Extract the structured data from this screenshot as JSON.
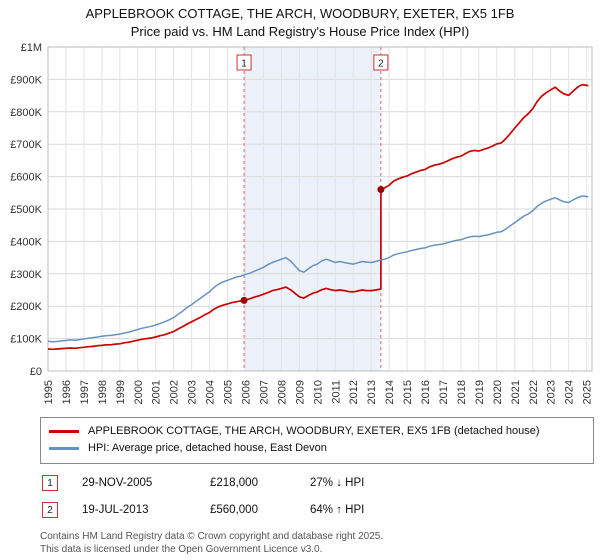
{
  "title": {
    "line1": "APPLEBROOK COTTAGE, THE ARCH, WOODBURY, EXETER, EX5 1FB",
    "line2": "Price paid vs. HM Land Registry's House Price Index (HPI)"
  },
  "chart_data": {
    "type": "line",
    "x_range": [
      1995,
      2025.3
    ],
    "y_range": [
      0,
      1000
    ],
    "y_unit": "GBP thousands",
    "y_ticks": [
      {
        "value": 0,
        "label": "£0"
      },
      {
        "value": 100,
        "label": "£100K"
      },
      {
        "value": 200,
        "label": "£200K"
      },
      {
        "value": 300,
        "label": "£300K"
      },
      {
        "value": 400,
        "label": "£400K"
      },
      {
        "value": 500,
        "label": "£500K"
      },
      {
        "value": 600,
        "label": "£600K"
      },
      {
        "value": 700,
        "label": "£700K"
      },
      {
        "value": 800,
        "label": "£800K"
      },
      {
        "value": 900,
        "label": "£900K"
      },
      {
        "value": 1000,
        "label": "£1M"
      }
    ],
    "x_ticks": [
      1995,
      1996,
      1997,
      1998,
      1999,
      2000,
      2001,
      2002,
      2003,
      2004,
      2005,
      2006,
      2007,
      2008,
      2009,
      2010,
      2011,
      2012,
      2013,
      2014,
      2015,
      2016,
      2017,
      2018,
      2019,
      2020,
      2021,
      2022,
      2023,
      2024,
      2025
    ],
    "shaded_region": {
      "from": 2005.92,
      "to": 2013.54,
      "color": "#edf2fa"
    },
    "markers": [
      {
        "n": "1",
        "x": 2005.92,
        "y": 218
      },
      {
        "n": "2",
        "x": 2013.54,
        "y": 560
      }
    ],
    "series": [
      {
        "name": "APPLEBROOK COTTAGE, THE ARCH, WOODBURY, EXETER, EX5 1FB (detached house)",
        "color": "#cc0000",
        "width": 1.7,
        "points": [
          [
            1995.0,
            68
          ],
          [
            1995.25,
            67
          ],
          [
            1995.5,
            68
          ],
          [
            1995.75,
            69
          ],
          [
            1996.0,
            70
          ],
          [
            1996.25,
            71
          ],
          [
            1996.5,
            70
          ],
          [
            1996.75,
            72
          ],
          [
            1997.0,
            73
          ],
          [
            1997.25,
            75
          ],
          [
            1997.5,
            76
          ],
          [
            1997.75,
            78
          ],
          [
            1998.0,
            79
          ],
          [
            1998.25,
            81
          ],
          [
            1998.5,
            81
          ],
          [
            1998.75,
            83
          ],
          [
            1999.0,
            84
          ],
          [
            1999.25,
            87
          ],
          [
            1999.5,
            89
          ],
          [
            1999.75,
            92
          ],
          [
            2000.0,
            95
          ],
          [
            2000.25,
            98
          ],
          [
            2000.5,
            100
          ],
          [
            2000.75,
            102
          ],
          [
            2001.0,
            105
          ],
          [
            2001.25,
            109
          ],
          [
            2001.5,
            112
          ],
          [
            2001.75,
            117
          ],
          [
            2002.0,
            122
          ],
          [
            2002.25,
            130
          ],
          [
            2002.5,
            137
          ],
          [
            2002.75,
            145
          ],
          [
            2003.0,
            152
          ],
          [
            2003.25,
            159
          ],
          [
            2003.5,
            166
          ],
          [
            2003.75,
            174
          ],
          [
            2004.0,
            181
          ],
          [
            2004.25,
            191
          ],
          [
            2004.5,
            198
          ],
          [
            2004.75,
            203
          ],
          [
            2005.0,
            207
          ],
          [
            2005.25,
            211
          ],
          [
            2005.5,
            214
          ],
          [
            2005.92,
            218
          ],
          [
            2006.25,
            223
          ],
          [
            2006.5,
            228
          ],
          [
            2006.75,
            232
          ],
          [
            2007.0,
            237
          ],
          [
            2007.25,
            242
          ],
          [
            2007.5,
            248
          ],
          [
            2007.75,
            251
          ],
          [
            2008.0,
            255
          ],
          [
            2008.25,
            259
          ],
          [
            2008.5,
            251
          ],
          [
            2008.75,
            240
          ],
          [
            2009.0,
            229
          ],
          [
            2009.25,
            225
          ],
          [
            2009.5,
            233
          ],
          [
            2009.75,
            240
          ],
          [
            2010.0,
            244
          ],
          [
            2010.25,
            251
          ],
          [
            2010.5,
            255
          ],
          [
            2010.75,
            251
          ],
          [
            2011.0,
            248
          ],
          [
            2011.25,
            250
          ],
          [
            2011.5,
            248
          ],
          [
            2011.75,
            245
          ],
          [
            2012.0,
            244
          ],
          [
            2012.25,
            247
          ],
          [
            2012.5,
            250
          ],
          [
            2012.75,
            248
          ],
          [
            2013.0,
            248
          ],
          [
            2013.25,
            250
          ],
          [
            2013.54,
            253
          ],
          [
            2013.54,
            560
          ],
          [
            2013.75,
            565
          ],
          [
            2014.0,
            573
          ],
          [
            2014.25,
            586
          ],
          [
            2014.5,
            593
          ],
          [
            2014.75,
            598
          ],
          [
            2015.0,
            602
          ],
          [
            2015.25,
            609
          ],
          [
            2015.5,
            614
          ],
          [
            2015.75,
            619
          ],
          [
            2016.0,
            622
          ],
          [
            2016.25,
            630
          ],
          [
            2016.5,
            635
          ],
          [
            2016.75,
            638
          ],
          [
            2017.0,
            642
          ],
          [
            2017.25,
            648
          ],
          [
            2017.5,
            655
          ],
          [
            2017.75,
            660
          ],
          [
            2018.0,
            663
          ],
          [
            2018.25,
            671
          ],
          [
            2018.5,
            678
          ],
          [
            2018.75,
            681
          ],
          [
            2019.0,
            679
          ],
          [
            2019.25,
            684
          ],
          [
            2019.5,
            688
          ],
          [
            2019.75,
            694
          ],
          [
            2020.0,
            701
          ],
          [
            2020.25,
            704
          ],
          [
            2020.5,
            717
          ],
          [
            2020.75,
            733
          ],
          [
            2021.0,
            750
          ],
          [
            2021.25,
            766
          ],
          [
            2021.5,
            782
          ],
          [
            2021.75,
            794
          ],
          [
            2022.0,
            810
          ],
          [
            2022.25,
            832
          ],
          [
            2022.5,
            848
          ],
          [
            2022.75,
            859
          ],
          [
            2023.0,
            868
          ],
          [
            2023.25,
            876
          ],
          [
            2023.5,
            864
          ],
          [
            2023.75,
            855
          ],
          [
            2024.0,
            851
          ],
          [
            2024.25,
            864
          ],
          [
            2024.5,
            876
          ],
          [
            2024.75,
            884
          ],
          [
            2025.1,
            881
          ]
        ]
      },
      {
        "name": "HPI: Average price, detached house, East Devon",
        "color": "#6691c3",
        "width": 1.5,
        "points": [
          [
            1995.0,
            92
          ],
          [
            1995.25,
            90
          ],
          [
            1995.5,
            91
          ],
          [
            1995.75,
            93
          ],
          [
            1996.0,
            94
          ],
          [
            1996.25,
            96
          ],
          [
            1996.5,
            95
          ],
          [
            1996.75,
            97
          ],
          [
            1997.0,
            99
          ],
          [
            1997.25,
            101
          ],
          [
            1997.5,
            103
          ],
          [
            1997.75,
            105
          ],
          [
            1998.0,
            107
          ],
          [
            1998.25,
            109
          ],
          [
            1998.5,
            110
          ],
          [
            1998.75,
            112
          ],
          [
            1999.0,
            114
          ],
          [
            1999.25,
            117
          ],
          [
            1999.5,
            120
          ],
          [
            1999.75,
            124
          ],
          [
            2000.0,
            128
          ],
          [
            2000.25,
            132
          ],
          [
            2000.5,
            135
          ],
          [
            2000.75,
            138
          ],
          [
            2001.0,
            142
          ],
          [
            2001.25,
            147
          ],
          [
            2001.5,
            152
          ],
          [
            2001.75,
            158
          ],
          [
            2002.0,
            165
          ],
          [
            2002.25,
            175
          ],
          [
            2002.5,
            185
          ],
          [
            2002.75,
            196
          ],
          [
            2003.0,
            205
          ],
          [
            2003.25,
            215
          ],
          [
            2003.5,
            225
          ],
          [
            2003.75,
            235
          ],
          [
            2004.0,
            245
          ],
          [
            2004.25,
            258
          ],
          [
            2004.5,
            268
          ],
          [
            2004.75,
            275
          ],
          [
            2005.0,
            280
          ],
          [
            2005.25,
            285
          ],
          [
            2005.5,
            290
          ],
          [
            2005.75,
            293
          ],
          [
            2006.0,
            298
          ],
          [
            2006.25,
            302
          ],
          [
            2006.5,
            308
          ],
          [
            2006.75,
            314
          ],
          [
            2007.0,
            320
          ],
          [
            2007.25,
            328
          ],
          [
            2007.5,
            335
          ],
          [
            2007.75,
            340
          ],
          [
            2008.0,
            345
          ],
          [
            2008.25,
            350
          ],
          [
            2008.5,
            340
          ],
          [
            2008.75,
            325
          ],
          [
            2009.0,
            310
          ],
          [
            2009.25,
            305
          ],
          [
            2009.5,
            315
          ],
          [
            2009.75,
            325
          ],
          [
            2010.0,
            330
          ],
          [
            2010.25,
            340
          ],
          [
            2010.5,
            345
          ],
          [
            2010.75,
            340
          ],
          [
            2011.0,
            335
          ],
          [
            2011.25,
            338
          ],
          [
            2011.5,
            335
          ],
          [
            2011.75,
            332
          ],
          [
            2012.0,
            330
          ],
          [
            2012.25,
            334
          ],
          [
            2012.5,
            338
          ],
          [
            2012.75,
            336
          ],
          [
            2013.0,
            335
          ],
          [
            2013.25,
            338
          ],
          [
            2013.5,
            342
          ],
          [
            2013.75,
            345
          ],
          [
            2014.0,
            350
          ],
          [
            2014.25,
            358
          ],
          [
            2014.5,
            362
          ],
          [
            2014.75,
            365
          ],
          [
            2015.0,
            368
          ],
          [
            2015.25,
            372
          ],
          [
            2015.5,
            375
          ],
          [
            2015.75,
            378
          ],
          [
            2016.0,
            380
          ],
          [
            2016.25,
            385
          ],
          [
            2016.5,
            388
          ],
          [
            2016.75,
            390
          ],
          [
            2017.0,
            392
          ],
          [
            2017.25,
            396
          ],
          [
            2017.5,
            400
          ],
          [
            2017.75,
            403
          ],
          [
            2018.0,
            405
          ],
          [
            2018.25,
            410
          ],
          [
            2018.5,
            414
          ],
          [
            2018.75,
            416
          ],
          [
            2019.0,
            415
          ],
          [
            2019.25,
            418
          ],
          [
            2019.5,
            420
          ],
          [
            2019.75,
            424
          ],
          [
            2020.0,
            428
          ],
          [
            2020.25,
            430
          ],
          [
            2020.5,
            438
          ],
          [
            2020.75,
            448
          ],
          [
            2021.0,
            458
          ],
          [
            2021.25,
            468
          ],
          [
            2021.5,
            478
          ],
          [
            2021.75,
            485
          ],
          [
            2022.0,
            495
          ],
          [
            2022.25,
            508
          ],
          [
            2022.5,
            518
          ],
          [
            2022.75,
            525
          ],
          [
            2023.0,
            530
          ],
          [
            2023.25,
            535
          ],
          [
            2023.5,
            528
          ],
          [
            2023.75,
            522
          ],
          [
            2024.0,
            520
          ],
          [
            2024.25,
            528
          ],
          [
            2024.5,
            535
          ],
          [
            2024.75,
            540
          ],
          [
            2025.1,
            538
          ]
        ]
      }
    ]
  },
  "transactions": [
    {
      "n": "1",
      "date": "29-NOV-2005",
      "price": "£218,000",
      "hpi": "27% ↓ HPI"
    },
    {
      "n": "2",
      "date": "19-JUL-2013",
      "price": "£560,000",
      "hpi": "64% ↑ HPI"
    }
  ],
  "footer": {
    "line1": "Contains HM Land Registry data © Crown copyright and database right 2025.",
    "line2": "This data is licensed under the Open Government Licence v3.0."
  }
}
